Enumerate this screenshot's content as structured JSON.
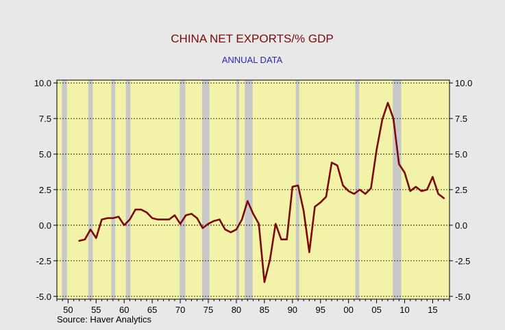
{
  "chart_data": {
    "type": "line",
    "title": "CHINA NET EXPORTS/% GDP",
    "subtitle": "ANNUAL DATA",
    "source": "Source: Haver Analytics",
    "xlabel": "",
    "ylabel": "",
    "xlim": [
      1948,
      2018
    ],
    "ylim": [
      -5.2,
      10.2
    ],
    "yticks": [
      10.0,
      7.5,
      5.0,
      2.5,
      0.0,
      -2.5,
      -5.0
    ],
    "ytick_labels": [
      "10.0",
      "7.5",
      "5.0",
      "2.5",
      "0.0",
      "-2.5",
      "-5.0"
    ],
    "xticks": [
      1950,
      1955,
      1960,
      1965,
      1970,
      1975,
      1980,
      1985,
      1990,
      1995,
      2000,
      2005,
      2010,
      2015
    ],
    "xtick_labels": [
      "50",
      "55",
      "60",
      "65",
      "70",
      "75",
      "80",
      "85",
      "90",
      "95",
      "00",
      "05",
      "10",
      "15"
    ],
    "grid": "horizontal dashed",
    "colors": {
      "plot_background": "#f2f2a8",
      "recession_band": "#c8c8c8",
      "line": "#7a0a0a",
      "frame_background": "#e8e8e8"
    },
    "recessions": [
      [
        1948.9,
        1949.8
      ],
      [
        1953.6,
        1954.4
      ],
      [
        1957.7,
        1958.4
      ],
      [
        1960.3,
        1961.1
      ],
      [
        1969.9,
        1970.9
      ],
      [
        1973.9,
        1975.2
      ],
      [
        1980.0,
        1980.5
      ],
      [
        1981.5,
        1982.9
      ],
      [
        1990.6,
        1991.2
      ],
      [
        2001.2,
        2001.9
      ],
      [
        2007.9,
        2009.4
      ]
    ],
    "series": [
      {
        "x": [
          1952,
          1953,
          1954,
          1955,
          1956,
          1957,
          1958,
          1959,
          1960,
          1961,
          1962,
          1963,
          1964,
          1965,
          1966,
          1967,
          1968,
          1969,
          1970,
          1971,
          1972,
          1973,
          1974,
          1975,
          1976,
          1977,
          1978,
          1979,
          1980,
          1981,
          1982,
          1983,
          1984,
          1985,
          1986,
          1987,
          1988,
          1989,
          1990,
          1991,
          1992,
          1993,
          1994,
          1995,
          1996,
          1997,
          1998,
          1999,
          2000,
          2001,
          2002,
          2003,
          2004,
          2005,
          2006,
          2007,
          2008,
          2009,
          2010,
          2011,
          2012,
          2013,
          2014,
          2015,
          2016,
          2017
        ],
        "values": [
          -1.1,
          -1.0,
          -0.3,
          -0.9,
          0.4,
          0.5,
          0.5,
          0.6,
          0.0,
          0.4,
          1.1,
          1.1,
          0.9,
          0.5,
          0.4,
          0.4,
          0.4,
          0.7,
          0.1,
          0.7,
          0.8,
          0.5,
          -0.2,
          0.1,
          0.3,
          0.4,
          -0.3,
          -0.5,
          -0.3,
          0.4,
          1.7,
          0.8,
          0.1,
          -4.0,
          -2.4,
          0.1,
          -1.0,
          -1.0,
          2.7,
          2.8,
          1.0,
          -1.9,
          1.3,
          1.6,
          2.0,
          4.4,
          4.2,
          2.8,
          2.4,
          2.2,
          2.5,
          2.2,
          2.6,
          5.3,
          7.4,
          8.6,
          7.5,
          4.3,
          3.7,
          2.4,
          2.7,
          2.4,
          2.5,
          3.4,
          2.2,
          1.9
        ]
      }
    ]
  }
}
